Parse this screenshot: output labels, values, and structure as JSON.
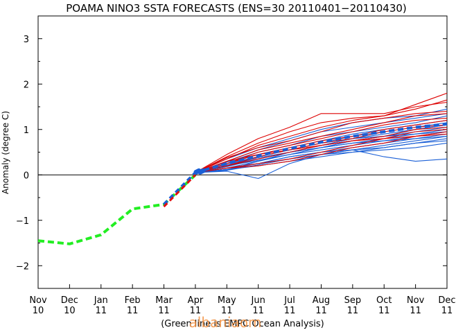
{
  "chart_data": {
    "type": "line",
    "title": "POAMA NINO3 SSTA FORECASTS (ENS=30 20110401−20110430)",
    "ylabel": "Anomaly (degree C)",
    "footnote": "(Green line is EMPC Ocean Analysis)",
    "watermark": "albaniaom",
    "ylim": [
      -2.5,
      3.5
    ],
    "yticks": [
      "−2",
      "−1",
      "0",
      "1",
      "2",
      "3"
    ],
    "ytick_values": [
      -2,
      -1,
      0,
      1,
      2,
      3
    ],
    "x_months": [
      "Nov",
      "Dec",
      "Jan",
      "Feb",
      "Mar",
      "Apr",
      "May",
      "Jun",
      "Jul",
      "Aug",
      "Sep",
      "Oct",
      "Nov",
      "Dec"
    ],
    "x_years": [
      "10",
      "10",
      "11",
      "11",
      "11",
      "11",
      "11",
      "11",
      "11",
      "11",
      "11",
      "11",
      "11",
      "11"
    ],
    "reference_line": 0,
    "colors": {
      "analysis": "#22ee22",
      "warm": "#dd0000",
      "cool": "#1a5fd6",
      "transition_red": "#e01010"
    },
    "analysis": {
      "color": "#22ee22",
      "style": "dashed",
      "x": [
        "Nov 10",
        "Dec 10",
        "Jan 11",
        "Feb 11",
        "Mar 11",
        "Apr 11"
      ],
      "values": [
        -1.45,
        -1.52,
        -1.32,
        -0.75,
        -0.65,
        0.0
      ]
    },
    "forecast_members": {
      "x": [
        "Apr 11",
        "May 11",
        "Jun 11",
        "Jul 11",
        "Aug 11",
        "Sep 11",
        "Oct 11",
        "Nov 11",
        "Dec 11"
      ],
      "series": [
        {
          "color": "#dd0000",
          "values": [
            0.05,
            0.45,
            0.8,
            1.05,
            1.35,
            1.35,
            1.35,
            1.5,
            1.6
          ]
        },
        {
          "color": "#dd0000",
          "values": [
            0.05,
            0.4,
            0.7,
            0.95,
            1.15,
            1.25,
            1.3,
            1.55,
            1.8
          ]
        },
        {
          "color": "#dd0000",
          "values": [
            0.05,
            0.35,
            0.65,
            0.85,
            1.05,
            1.2,
            1.3,
            1.45,
            1.65
          ]
        },
        {
          "color": "#dd0000",
          "values": [
            0.05,
            0.38,
            0.6,
            0.75,
            0.95,
            1.15,
            1.25,
            1.35,
            1.4
          ]
        },
        {
          "color": "#dd0000",
          "values": [
            0.05,
            0.3,
            0.55,
            0.7,
            0.85,
            1.0,
            1.15,
            1.3,
            1.35
          ]
        },
        {
          "color": "#dd0000",
          "values": [
            0.05,
            0.25,
            0.5,
            0.65,
            0.8,
            0.95,
            1.1,
            1.2,
            1.25
          ]
        },
        {
          "color": "#dd0000",
          "values": [
            0.05,
            0.3,
            0.45,
            0.6,
            0.75,
            0.85,
            1.0,
            1.1,
            1.2
          ]
        },
        {
          "color": "#dd0000",
          "values": [
            0.05,
            0.2,
            0.4,
            0.55,
            0.7,
            0.8,
            0.95,
            1.05,
            1.1
          ]
        },
        {
          "color": "#dd0000",
          "values": [
            0.05,
            0.2,
            0.35,
            0.5,
            0.65,
            0.75,
            0.85,
            1.0,
            1.05
          ]
        },
        {
          "color": "#dd0000",
          "values": [
            0.05,
            0.15,
            0.25,
            0.35,
            0.5,
            0.65,
            0.8,
            0.95,
            1.0
          ]
        },
        {
          "color": "#dd0000",
          "values": [
            0.05,
            0.15,
            0.2,
            0.3,
            0.45,
            0.6,
            0.7,
            0.85,
            0.95
          ]
        },
        {
          "color": "#dd0000",
          "values": [
            0.05,
            0.25,
            0.45,
            0.55,
            0.65,
            0.75,
            0.8,
            0.85,
            0.9
          ]
        },
        {
          "color": "#1a5fd6",
          "values": [
            0.05,
            0.35,
            0.6,
            0.8,
            1.0,
            1.15,
            1.25,
            1.3,
            1.45
          ]
        },
        {
          "color": "#1a5fd6",
          "values": [
            0.05,
            0.3,
            0.55,
            0.75,
            0.95,
            1.05,
            1.15,
            1.25,
            1.35
          ]
        },
        {
          "color": "#1a5fd6",
          "values": [
            0.05,
            0.28,
            0.5,
            0.65,
            0.85,
            0.95,
            1.05,
            1.15,
            1.3
          ]
        },
        {
          "color": "#1a5fd6",
          "values": [
            0.05,
            0.25,
            0.45,
            0.6,
            0.75,
            0.9,
            1.0,
            1.1,
            1.2
          ]
        },
        {
          "color": "#1a5fd6",
          "values": [
            0.05,
            0.22,
            0.4,
            0.55,
            0.7,
            0.85,
            0.95,
            1.05,
            1.15
          ]
        },
        {
          "color": "#1a5fd6",
          "values": [
            0.05,
            0.2,
            0.38,
            0.5,
            0.65,
            0.8,
            0.9,
            1.0,
            1.1
          ]
        },
        {
          "color": "#1a5fd6",
          "values": [
            0.05,
            0.18,
            0.35,
            0.5,
            0.6,
            0.75,
            0.85,
            0.95,
            1.05
          ]
        },
        {
          "color": "#1a5fd6",
          "values": [
            0.05,
            0.2,
            0.32,
            0.45,
            0.6,
            0.7,
            0.8,
            0.9,
            1.0
          ]
        },
        {
          "color": "#1a5fd6",
          "values": [
            0.05,
            0.15,
            0.3,
            0.45,
            0.55,
            0.65,
            0.75,
            0.85,
            0.95
          ]
        },
        {
          "color": "#1a5fd6",
          "values": [
            0.05,
            0.12,
            0.25,
            0.4,
            0.5,
            0.6,
            0.7,
            0.8,
            0.9
          ]
        },
        {
          "color": "#1a5fd6",
          "values": [
            0.05,
            0.1,
            0.22,
            0.35,
            0.45,
            0.55,
            0.65,
            0.75,
            0.85
          ]
        },
        {
          "color": "#1a5fd6",
          "values": [
            0.05,
            0.12,
            0.2,
            0.3,
            0.4,
            0.5,
            0.6,
            0.7,
            0.8
          ]
        },
        {
          "color": "#1a5fd6",
          "values": [
            0.05,
            0.15,
            0.25,
            0.35,
            0.45,
            0.5,
            0.55,
            0.6,
            0.7
          ]
        },
        {
          "color": "#1a5fd6",
          "values": [
            0.05,
            0.08,
            -0.08,
            0.25,
            0.45,
            0.55,
            0.6,
            0.7,
            0.75
          ]
        },
        {
          "color": "#1a5fd6",
          "values": [
            0.05,
            0.2,
            0.35,
            0.5,
            0.6,
            0.7,
            0.75,
            0.8,
            0.85
          ]
        },
        {
          "color": "#1a5fd6",
          "values": [
            0.05,
            0.1,
            0.3,
            0.5,
            0.65,
            0.75,
            0.85,
            1.0,
            1.1
          ]
        },
        {
          "color": "#1a5fd6",
          "values": [
            0.05,
            0.15,
            0.25,
            0.4,
            0.5,
            0.55,
            0.4,
            0.3,
            0.35
          ]
        },
        {
          "color": "#1a5fd6",
          "values": [
            0.05,
            0.25,
            0.4,
            0.55,
            0.7,
            0.8,
            0.85,
            0.9,
            0.95
          ]
        }
      ]
    },
    "ensemble_mean": {
      "color": "#1a5fd6",
      "style": "dashed",
      "x": [
        "Apr 11",
        "May 11",
        "Jun 11",
        "Jul 11",
        "Aug 11",
        "Sep 11",
        "Oct 11",
        "Nov 11",
        "Dec 11"
      ],
      "values": [
        0.05,
        0.25,
        0.42,
        0.58,
        0.72,
        0.85,
        0.95,
        1.05,
        1.12
      ]
    },
    "transition": {
      "colors": [
        "#e01010",
        "#1a5fd6"
      ],
      "style": "dashed",
      "x": [
        "Mar 11",
        "Apr 11"
      ],
      "values": [
        -0.65,
        0.05
      ]
    },
    "grid": false
  }
}
